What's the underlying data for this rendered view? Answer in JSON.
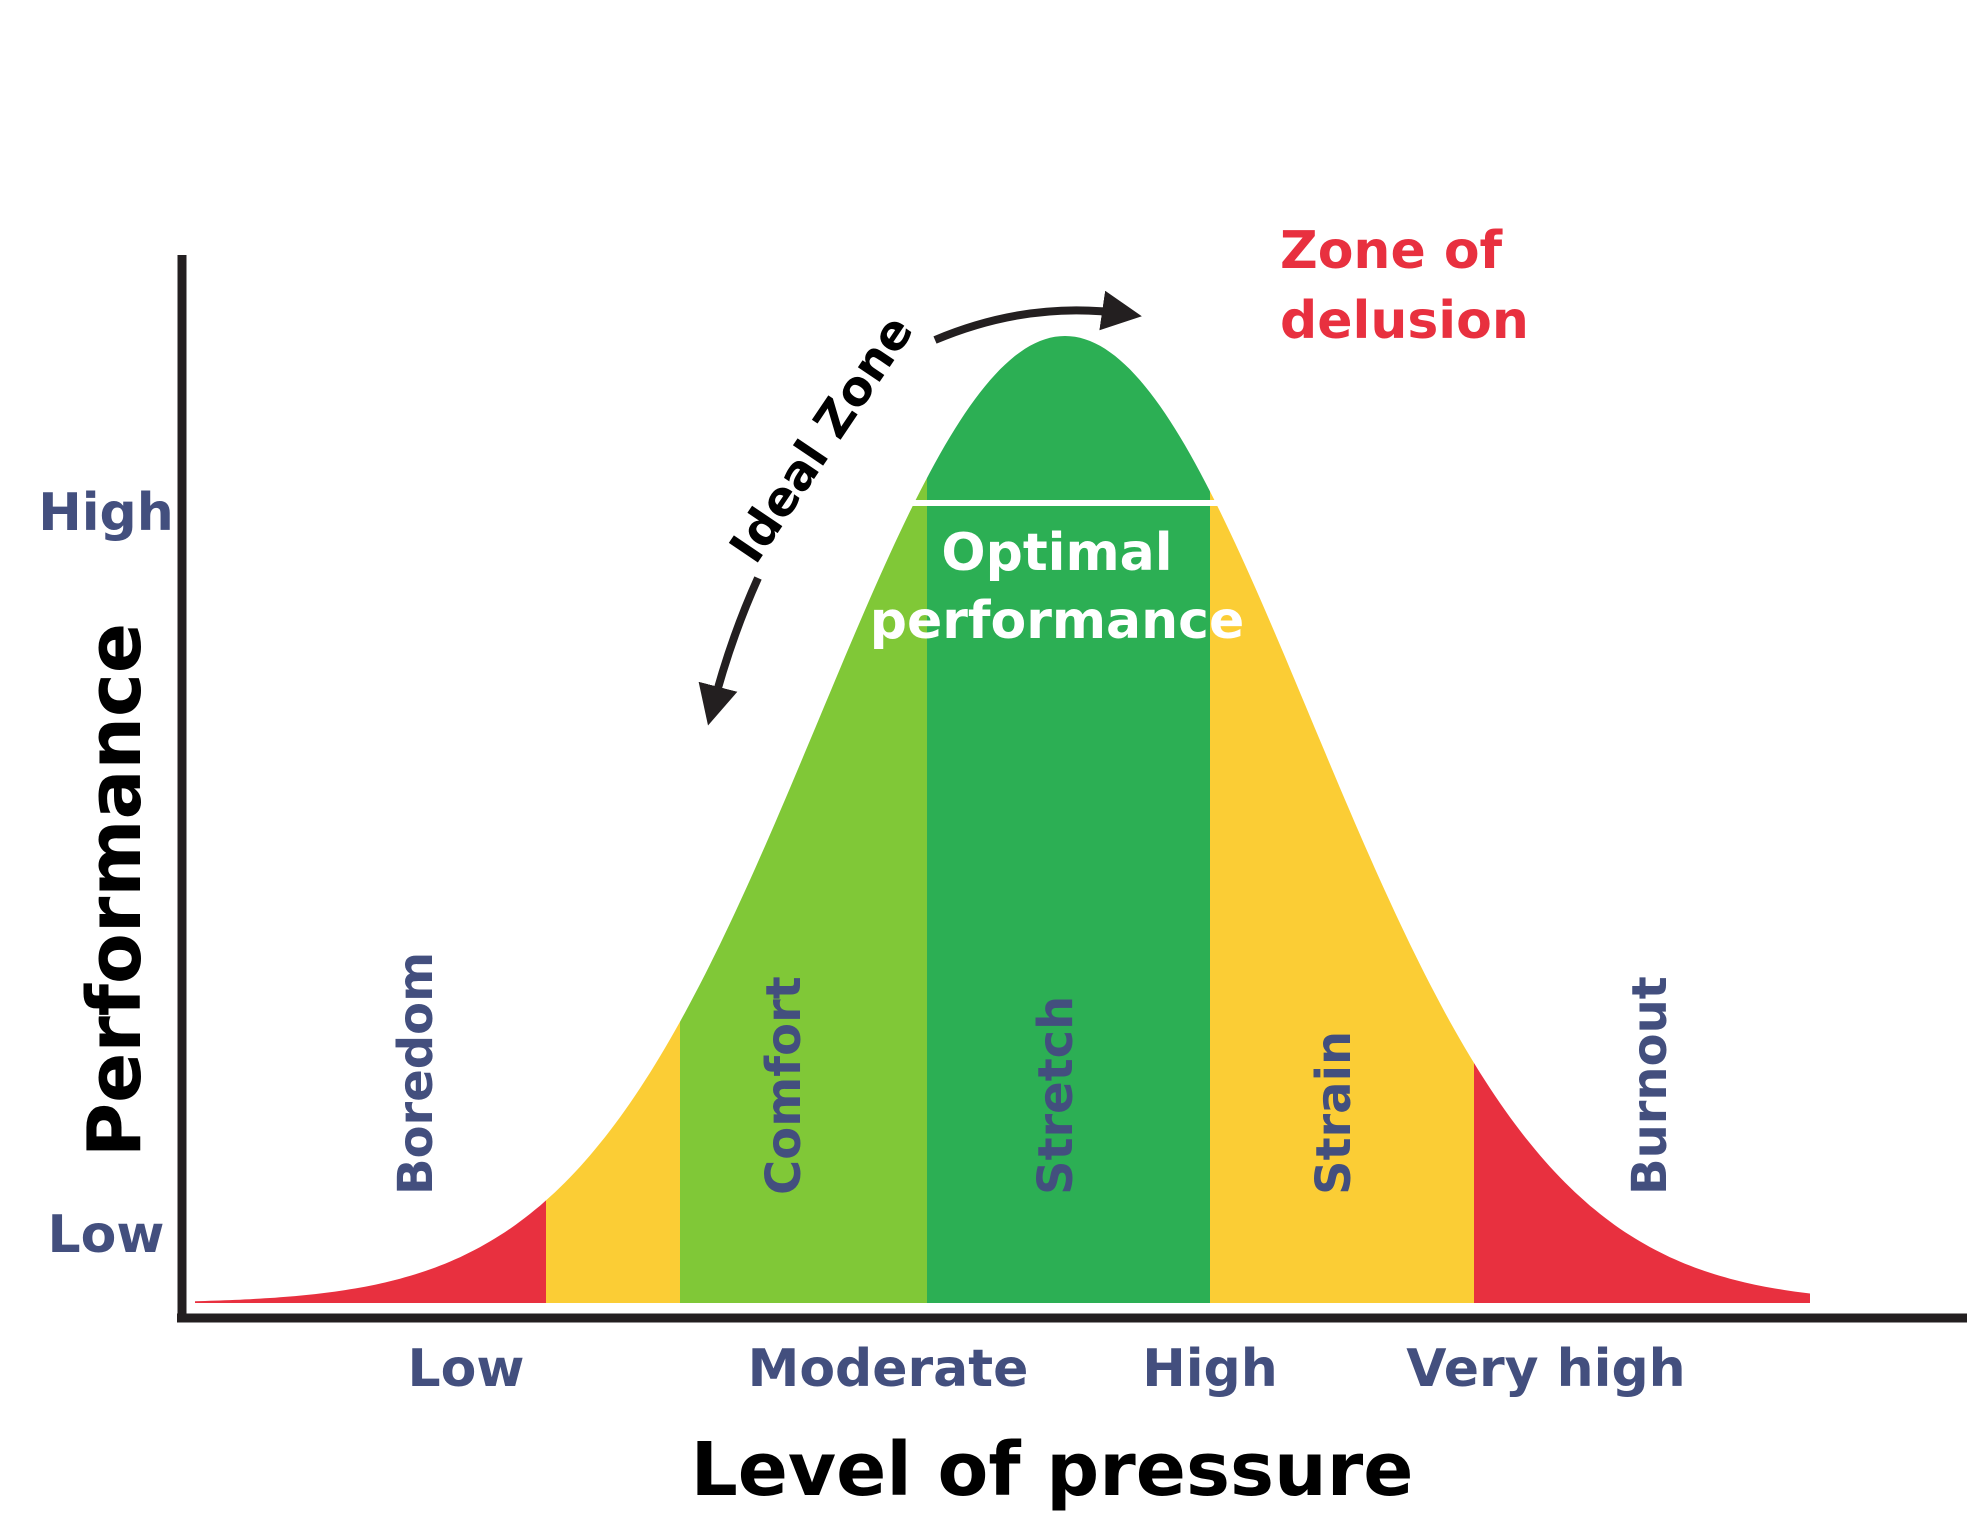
{
  "chart_data": {
    "type": "area",
    "curve": "bell",
    "ylabel": "Performance",
    "xlabel": "Level of pressure",
    "y_ticks": [
      "High",
      "Low"
    ],
    "x_ticks": [
      "Low",
      "Moderate",
      "High",
      "Very high"
    ],
    "zones": [
      {
        "label": "Boredom",
        "color": "#e8303f"
      },
      {
        "label": "",
        "color": "#fbcd35"
      },
      {
        "label": "Comfort",
        "color": "#80c837"
      },
      {
        "label": "Stretch",
        "color": "#2caf54"
      },
      {
        "label": "Strain",
        "color": "#fbcd35"
      },
      {
        "label": "Burnout",
        "color": "#e8303f"
      }
    ],
    "annotations": {
      "ideal_zone": "Ideal Zone",
      "optimal_line1": "Optimal",
      "optimal_line2": "performance",
      "delusion_line1": "Zone of",
      "delusion_line2": "delusion"
    },
    "colors": {
      "label_text": "#434f7e",
      "axis": "#231f20",
      "delusion": "#e8303f",
      "optimal": "#ffffff"
    }
  }
}
